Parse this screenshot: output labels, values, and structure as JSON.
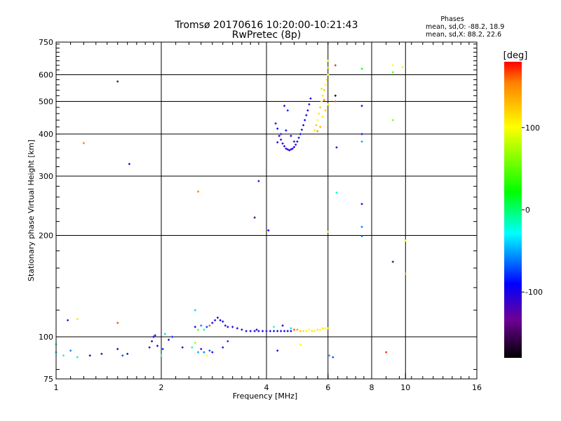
{
  "chart_data": {
    "type": "scatter",
    "title": "Tromsø 20170616 10:20:00-10:21:43",
    "subtitle": "RwPretec (8p)",
    "xlabel": "Frequency [MHz]",
    "ylabel": "Stationary phase Virtual Height [km]",
    "x_scale": "log2",
    "y_scale": "log",
    "xlim": [
      1,
      16
    ],
    "ylim": [
      75,
      750
    ],
    "x_ticks": [
      1,
      2,
      4,
      6,
      8,
      10,
      16
    ],
    "y_ticks": [
      75,
      100,
      200,
      300,
      400,
      500,
      600,
      750
    ],
    "x_grid": [
      2,
      4,
      6,
      8,
      10
    ],
    "y_grid": [
      100,
      200,
      300,
      400,
      500,
      600
    ],
    "stats": {
      "title": "Phases",
      "line1": "mean, sd,O: -88.2, 18.9",
      "line2": "mean, sd,X:  88.2, 22.6"
    },
    "colorbar": {
      "label": "[deg]",
      "range": [
        -180,
        180
      ],
      "ticks": [
        100,
        0,
        -100
      ],
      "colors": [
        "#ff0000",
        "#ff8000",
        "#ffff00",
        "#00ff00",
        "#00ffff",
        "#0000ff",
        "#800080",
        "#000000"
      ]
    },
    "points": [
      [
        1.0,
        90,
        -40
      ],
      [
        1.05,
        88,
        -20
      ],
      [
        1.1,
        91,
        -60
      ],
      [
        1.15,
        87,
        -10
      ],
      [
        1.25,
        88,
        -100
      ],
      [
        1.35,
        89,
        -110
      ],
      [
        1.5,
        92,
        -100
      ],
      [
        1.55,
        88,
        -70
      ],
      [
        1.6,
        89,
        -100
      ],
      [
        1.0,
        95,
        -20
      ],
      [
        1.08,
        112,
        -120
      ],
      [
        1.15,
        113,
        110
      ],
      [
        1.2,
        376,
        150
      ],
      [
        1.5,
        110,
        160
      ],
      [
        1.5,
        573,
        -150
      ],
      [
        1.62,
        326,
        -110
      ],
      [
        1.85,
        93,
        -110
      ],
      [
        1.88,
        97,
        -100
      ],
      [
        1.9,
        100,
        -90
      ],
      [
        1.92,
        101,
        -110
      ],
      [
        1.95,
        94,
        -100
      ],
      [
        2.0,
        88,
        -30
      ],
      [
        2.02,
        92,
        -80
      ],
      [
        2.05,
        102,
        -40
      ],
      [
        2.1,
        98,
        -100
      ],
      [
        2.15,
        100,
        -80
      ],
      [
        2.3,
        93,
        -110
      ],
      [
        2.45,
        93,
        -20
      ],
      [
        2.5,
        96,
        70
      ],
      [
        2.55,
        90,
        -50
      ],
      [
        2.6,
        92,
        -110
      ],
      [
        2.65,
        90,
        -60
      ],
      [
        2.7,
        88,
        100
      ],
      [
        2.75,
        91,
        -70
      ],
      [
        2.8,
        90,
        -100
      ],
      [
        2.5,
        120,
        -40
      ],
      [
        2.5,
        107,
        -100
      ],
      [
        2.55,
        105,
        50
      ],
      [
        2.6,
        108,
        -60
      ],
      [
        2.65,
        105,
        -20
      ],
      [
        2.7,
        107,
        -80
      ],
      [
        2.75,
        108,
        160
      ],
      [
        2.8,
        110,
        -100
      ],
      [
        2.85,
        112,
        -110
      ],
      [
        2.9,
        114,
        -100
      ],
      [
        2.95,
        112,
        -90
      ],
      [
        3.0,
        111,
        -100
      ],
      [
        3.05,
        108,
        -110
      ],
      [
        3.1,
        107,
        -100
      ],
      [
        2.55,
        270,
        150
      ],
      [
        3.0,
        93,
        -110
      ],
      [
        3.1,
        97,
        -80
      ],
      [
        3.2,
        107,
        -100
      ],
      [
        3.3,
        106,
        -100
      ],
      [
        3.4,
        105,
        -110
      ],
      [
        3.5,
        104,
        -100
      ],
      [
        3.6,
        104,
        -90
      ],
      [
        3.7,
        104,
        -100
      ],
      [
        3.8,
        104,
        -110
      ],
      [
        3.9,
        104,
        -100
      ],
      [
        4.0,
        104,
        -100
      ],
      [
        4.1,
        104,
        -90
      ],
      [
        4.2,
        104,
        -100
      ],
      [
        4.3,
        104,
        -110
      ],
      [
        4.4,
        104,
        -100
      ],
      [
        4.5,
        104,
        -100
      ],
      [
        4.6,
        104,
        -90
      ],
      [
        4.7,
        104,
        -100
      ],
      [
        4.8,
        105,
        160
      ],
      [
        4.9,
        105,
        140
      ],
      [
        5.0,
        104,
        120
      ],
      [
        5.1,
        104,
        110
      ],
      [
        5.2,
        104,
        105
      ],
      [
        5.3,
        105,
        100
      ],
      [
        5.4,
        104,
        110
      ],
      [
        5.5,
        104,
        105
      ],
      [
        5.6,
        105,
        110
      ],
      [
        5.7,
        105,
        100
      ],
      [
        5.8,
        106,
        110
      ],
      [
        5.9,
        106,
        100
      ],
      [
        6.0,
        106,
        110
      ],
      [
        3.75,
        105,
        -100
      ],
      [
        4.2,
        107,
        -20
      ],
      [
        4.7,
        106,
        -40
      ],
      [
        4.45,
        108,
        -100
      ],
      [
        3.7,
        226,
        -150
      ],
      [
        3.8,
        290,
        -110
      ],
      [
        4.05,
        207,
        -90
      ],
      [
        4.3,
        91,
        -110
      ],
      [
        5.0,
        95,
        100
      ],
      [
        4.25,
        430,
        -100
      ],
      [
        4.3,
        415,
        -90
      ],
      [
        4.35,
        395,
        -100
      ],
      [
        4.4,
        385,
        -110
      ],
      [
        4.45,
        375,
        -100
      ],
      [
        4.5,
        368,
        -100
      ],
      [
        4.55,
        362,
        -110
      ],
      [
        4.6,
        360,
        -100
      ],
      [
        4.65,
        358,
        -100
      ],
      [
        4.7,
        360,
        -110
      ],
      [
        4.75,
        362,
        -100
      ],
      [
        4.8,
        366,
        -100
      ],
      [
        4.85,
        372,
        -110
      ],
      [
        4.9,
        380,
        -100
      ],
      [
        4.95,
        390,
        -100
      ],
      [
        5.0,
        400,
        -90
      ],
      [
        5.05,
        412,
        -100
      ],
      [
        5.1,
        425,
        -100
      ],
      [
        5.15,
        440,
        -90
      ],
      [
        5.2,
        455,
        -100
      ],
      [
        5.25,
        470,
        -100
      ],
      [
        5.3,
        490,
        -110
      ],
      [
        5.35,
        510,
        -100
      ],
      [
        4.5,
        485,
        -100
      ],
      [
        4.6,
        470,
        -80
      ],
      [
        4.3,
        378,
        -100
      ],
      [
        4.4,
        400,
        -110
      ],
      [
        4.55,
        410,
        -90
      ],
      [
        4.7,
        395,
        -100
      ],
      [
        4.8,
        380,
        -110
      ],
      [
        5.5,
        410,
        110
      ],
      [
        5.55,
        425,
        120
      ],
      [
        5.6,
        440,
        100
      ],
      [
        5.65,
        460,
        110
      ],
      [
        5.7,
        480,
        120
      ],
      [
        5.75,
        500,
        100
      ],
      [
        5.8,
        520,
        110
      ],
      [
        5.85,
        540,
        120
      ],
      [
        5.9,
        560,
        100
      ],
      [
        5.95,
        580,
        110
      ],
      [
        6.0,
        600,
        100
      ],
      [
        6.0,
        630,
        120
      ],
      [
        6.0,
        660,
        100
      ],
      [
        5.8,
        450,
        110
      ],
      [
        5.9,
        470,
        120
      ],
      [
        6.0,
        490,
        100
      ],
      [
        5.7,
        420,
        130
      ],
      [
        5.6,
        408,
        140
      ],
      [
        5.75,
        545,
        80
      ],
      [
        5.85,
        505,
        150
      ],
      [
        6.3,
        640,
        170
      ],
      [
        6.3,
        500,
        160
      ],
      [
        6.3,
        520,
        -170
      ],
      [
        6.35,
        365,
        -110
      ],
      [
        6.35,
        268,
        -20
      ],
      [
        6.0,
        205,
        110
      ],
      [
        6.05,
        88,
        -50
      ],
      [
        6.2,
        87,
        -70
      ],
      [
        7.5,
        625,
        20
      ],
      [
        7.5,
        485,
        -100
      ],
      [
        7.5,
        400,
        -100
      ],
      [
        7.5,
        380,
        -50
      ],
      [
        7.5,
        248,
        -100
      ],
      [
        7.5,
        212,
        -60
      ],
      [
        7.5,
        199,
        -60
      ],
      [
        8.8,
        90,
        170
      ],
      [
        9.2,
        640,
        100
      ],
      [
        9.2,
        610,
        50
      ],
      [
        9.2,
        440,
        60
      ],
      [
        9.2,
        167,
        -150
      ],
      [
        9.8,
        632,
        90
      ],
      [
        10.0,
        193,
        100
      ],
      [
        10.0,
        154,
        130
      ]
    ]
  }
}
